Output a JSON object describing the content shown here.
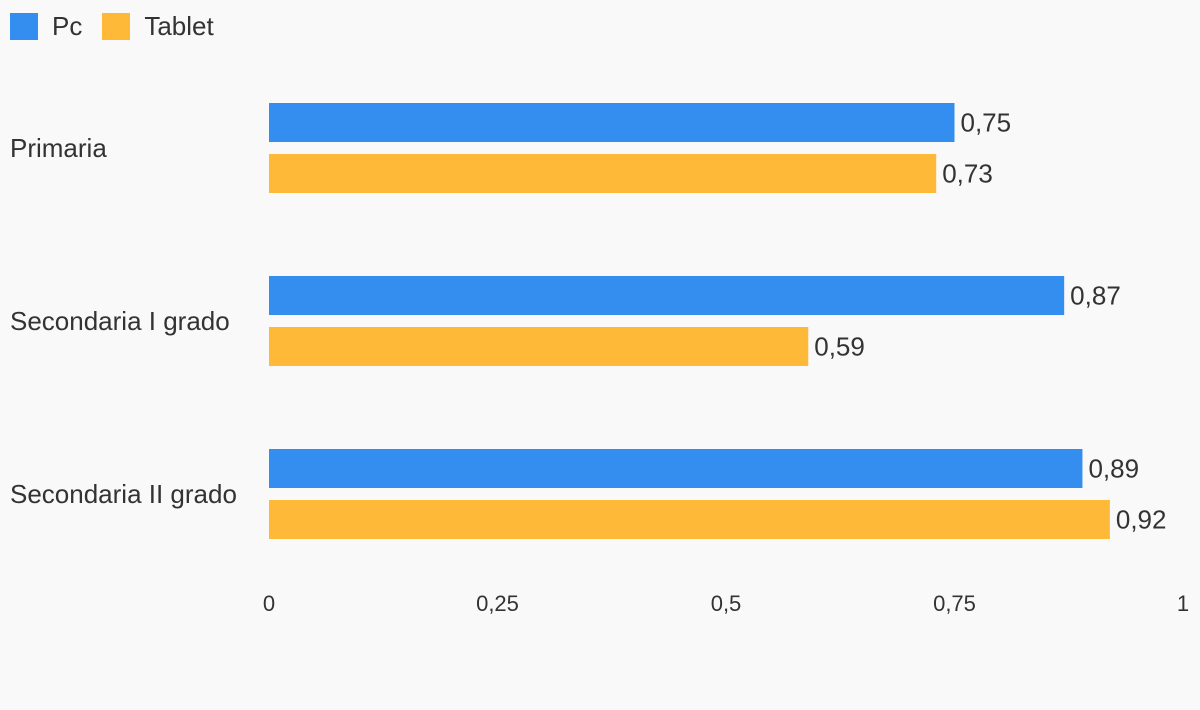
{
  "chart_data": {
    "type": "bar",
    "orientation": "horizontal",
    "categories": [
      "Primaria",
      "Secondaria I grado",
      "Secondaria II grado"
    ],
    "series": [
      {
        "name": "Pc",
        "color": "#348ef0",
        "values": [
          0.75,
          0.87,
          0.89
        ],
        "labels": [
          "0,75",
          "0,87",
          "0,89"
        ]
      },
      {
        "name": "Tablet",
        "color": "#ffb938",
        "values": [
          0.73,
          0.59,
          0.92
        ],
        "labels": [
          "0,73",
          "0,59",
          "0,92"
        ]
      }
    ],
    "xlim": [
      0,
      1
    ],
    "xticks": [
      0,
      0.25,
      0.5,
      0.75,
      1
    ],
    "xtick_labels": [
      "0",
      "0,25",
      "0,5",
      "0,75",
      "1"
    ],
    "legend_position": "top-left",
    "grid": false
  }
}
